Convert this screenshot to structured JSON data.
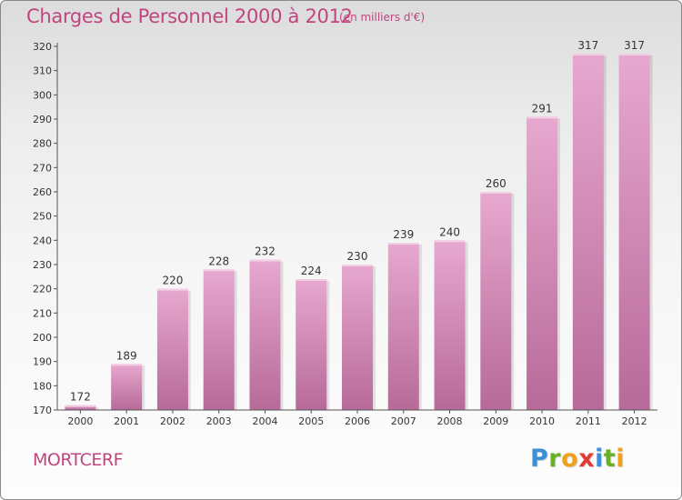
{
  "header": {
    "title": "Charges de Personnel 2000 à 2012",
    "subtitle": "(en milliers d'€)"
  },
  "footer": {
    "commune": "MORTCERF",
    "logo_letters": [
      "P",
      "r",
      "o",
      "x",
      "i",
      "t",
      "i"
    ],
    "logo_colors": [
      "#3a8fd6",
      "#6ab023",
      "#f0a019",
      "#e03c31",
      "#3a8fd6",
      "#6ab023",
      "#f0a019"
    ]
  },
  "colors": {
    "title": "#c0457f",
    "bar_light": "#e7a8cf",
    "bar_dark": "#b76a98",
    "axis": "#555555",
    "gridline": "#c8c8c8"
  },
  "chart_data": {
    "type": "bar",
    "categories": [
      "2000",
      "2001",
      "2002",
      "2003",
      "2004",
      "2005",
      "2006",
      "2007",
      "2008",
      "2009",
      "2010",
      "2011",
      "2012"
    ],
    "values": [
      172,
      189,
      220,
      228,
      232,
      224,
      230,
      239,
      240,
      260,
      291,
      317,
      317
    ],
    "data_labels": [
      "172",
      "189",
      "220",
      "228",
      "232",
      "224",
      "230",
      "239",
      "240",
      "260",
      "291",
      "317",
      "317"
    ],
    "yticks": [
      170,
      180,
      190,
      200,
      210,
      220,
      230,
      240,
      250,
      260,
      270,
      280,
      290,
      300,
      310,
      320
    ],
    "ylim": [
      170,
      320
    ],
    "grid": false,
    "legend": "none"
  }
}
